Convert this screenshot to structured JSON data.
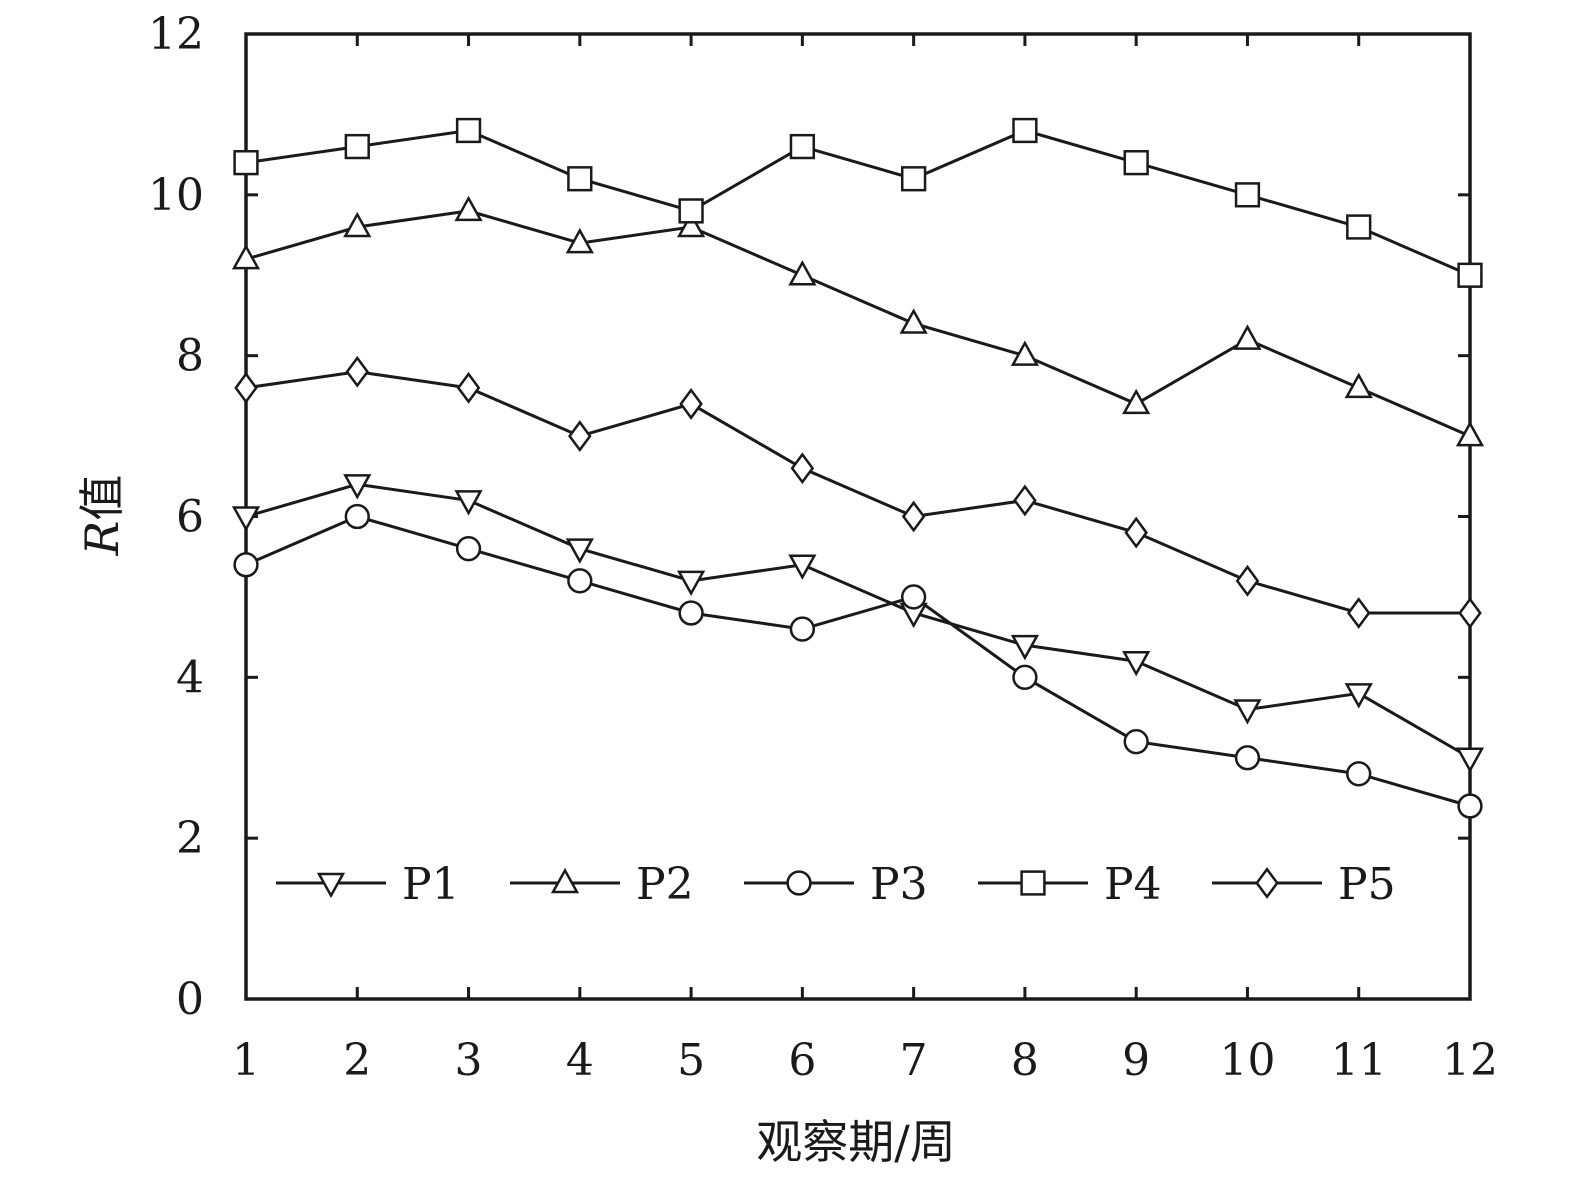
{
  "chart_data": {
    "type": "line",
    "title": "",
    "xlabel": "观察期/周",
    "ylabel_italic": "R",
    "ylabel_rest": "值",
    "x": [
      1,
      2,
      3,
      4,
      5,
      6,
      7,
      8,
      9,
      10,
      11,
      12
    ],
    "xlim": [
      1,
      12
    ],
    "ylim": [
      0,
      12
    ],
    "yticks": [
      0,
      2,
      4,
      6,
      8,
      10,
      12
    ],
    "grid": false,
    "legend": "bottom",
    "series": [
      {
        "name": "P1",
        "marker": "triangle-down",
        "values": [
          6.0,
          6.4,
          6.2,
          5.6,
          5.2,
          5.4,
          4.8,
          4.4,
          4.2,
          3.6,
          3.8,
          3.0
        ]
      },
      {
        "name": "P2",
        "marker": "triangle-up",
        "values": [
          9.2,
          9.6,
          9.8,
          9.4,
          9.6,
          9.0,
          8.4,
          8.0,
          7.4,
          8.2,
          7.6,
          7.0
        ]
      },
      {
        "name": "P3",
        "marker": "circle",
        "values": [
          5.4,
          6.0,
          5.6,
          5.2,
          4.8,
          4.6,
          5.0,
          4.0,
          3.2,
          3.0,
          2.8,
          2.4
        ]
      },
      {
        "name": "P4",
        "marker": "square",
        "values": [
          10.4,
          10.6,
          10.8,
          10.2,
          9.8,
          10.6,
          10.2,
          10.8,
          10.4,
          10.0,
          9.6,
          9.0
        ]
      },
      {
        "name": "P5",
        "marker": "diamond",
        "values": [
          7.6,
          7.8,
          7.6,
          7.0,
          7.4,
          6.6,
          6.0,
          6.2,
          5.8,
          5.2,
          4.8,
          4.8
        ]
      }
    ]
  }
}
